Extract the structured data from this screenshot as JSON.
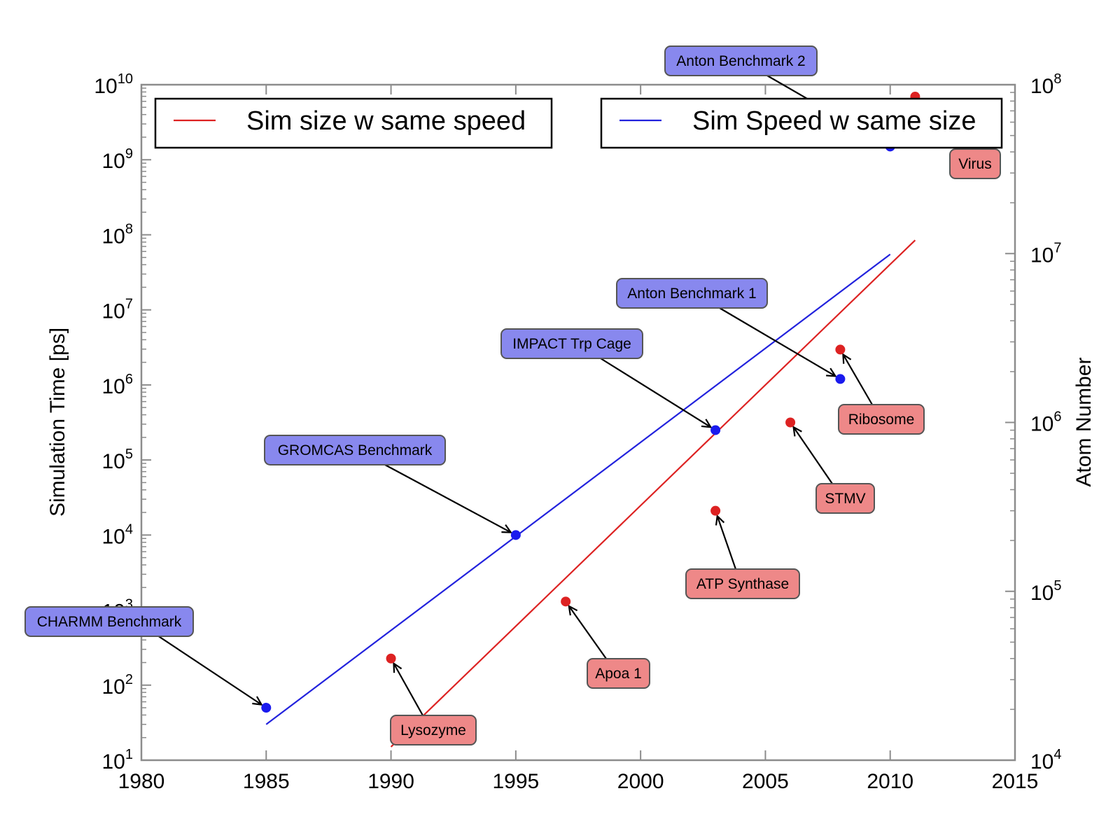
{
  "chart_data": {
    "type": "scatter",
    "xlim": [
      1980,
      2015
    ],
    "x_ticks": [
      1980,
      1985,
      1990,
      1995,
      2000,
      2005,
      2010,
      2015
    ],
    "left_axis": {
      "label": "Simulation Time [ps]",
      "scale": "log",
      "ylim": [
        10,
        10000000000
      ],
      "tick_exponents": [
        1,
        2,
        3,
        4,
        5,
        6,
        7,
        8,
        9,
        10
      ]
    },
    "right_axis": {
      "label": "Atom Number",
      "scale": "log",
      "ylim": [
        10000,
        100000000
      ],
      "tick_exponents": [
        4,
        5,
        6,
        7,
        8
      ]
    },
    "series": [
      {
        "name": "Sim size w same speed",
        "kind": "line",
        "axis": "right",
        "color": "#dd2222",
        "x": [
          1990,
          2011
        ],
        "y": [
          12000,
          12000000
        ]
      },
      {
        "name": "Sim Speed w same size",
        "kind": "line",
        "axis": "left",
        "color": "#2222dd",
        "x": [
          1985,
          2010
        ],
        "y": [
          30,
          55000000
        ]
      }
    ],
    "points": [
      {
        "label": "CHARMM Benchmark",
        "axis": "left",
        "color": "#1a1aee",
        "box_color": "#8888ee",
        "x": 1985,
        "y": 50
      },
      {
        "label": "GROMCAS Benchmark",
        "axis": "left",
        "color": "#1a1aee",
        "box_color": "#8888ee",
        "x": 1995,
        "y": 10000
      },
      {
        "label": "IMPACT Trp Cage",
        "axis": "left",
        "color": "#1a1aee",
        "box_color": "#8888ee",
        "x": 2003,
        "y": 250000
      },
      {
        "label": "Anton Benchmark 1",
        "axis": "left",
        "color": "#1a1aee",
        "box_color": "#8888ee",
        "x": 2008,
        "y": 1200000
      },
      {
        "label": "Anton Benchmark 2",
        "axis": "left",
        "color": "#1a1aee",
        "box_color": "#8888ee",
        "x": 2010,
        "y": 1500000000
      },
      {
        "label": "Lysozyme",
        "axis": "right",
        "color": "#dd2222",
        "box_color": "#ee8888",
        "x": 1990,
        "y": 40000
      },
      {
        "label": "Apoa 1",
        "axis": "right",
        "color": "#dd2222",
        "box_color": "#ee8888",
        "x": 1997,
        "y": 87000
      },
      {
        "label": "ATP Synthase",
        "axis": "right",
        "color": "#dd2222",
        "box_color": "#ee8888",
        "x": 2003,
        "y": 300000
      },
      {
        "label": "STMV",
        "axis": "right",
        "color": "#dd2222",
        "box_color": "#ee8888",
        "x": 2006,
        "y": 1000000
      },
      {
        "label": "Ribosome",
        "axis": "right",
        "color": "#dd2222",
        "box_color": "#ee8888",
        "x": 2008,
        "y": 2700000
      },
      {
        "label": "Virus",
        "axis": "right",
        "color": "#dd2222",
        "box_color": "#ee8888",
        "x": 2011,
        "y": 85000000
      }
    ],
    "legend": [
      {
        "label": "Sim size w same speed",
        "color": "#dd2222",
        "placement": "top-left"
      },
      {
        "label": "Sim Speed w same size",
        "color": "#2222dd",
        "placement": "top-right"
      }
    ],
    "grid": false
  }
}
